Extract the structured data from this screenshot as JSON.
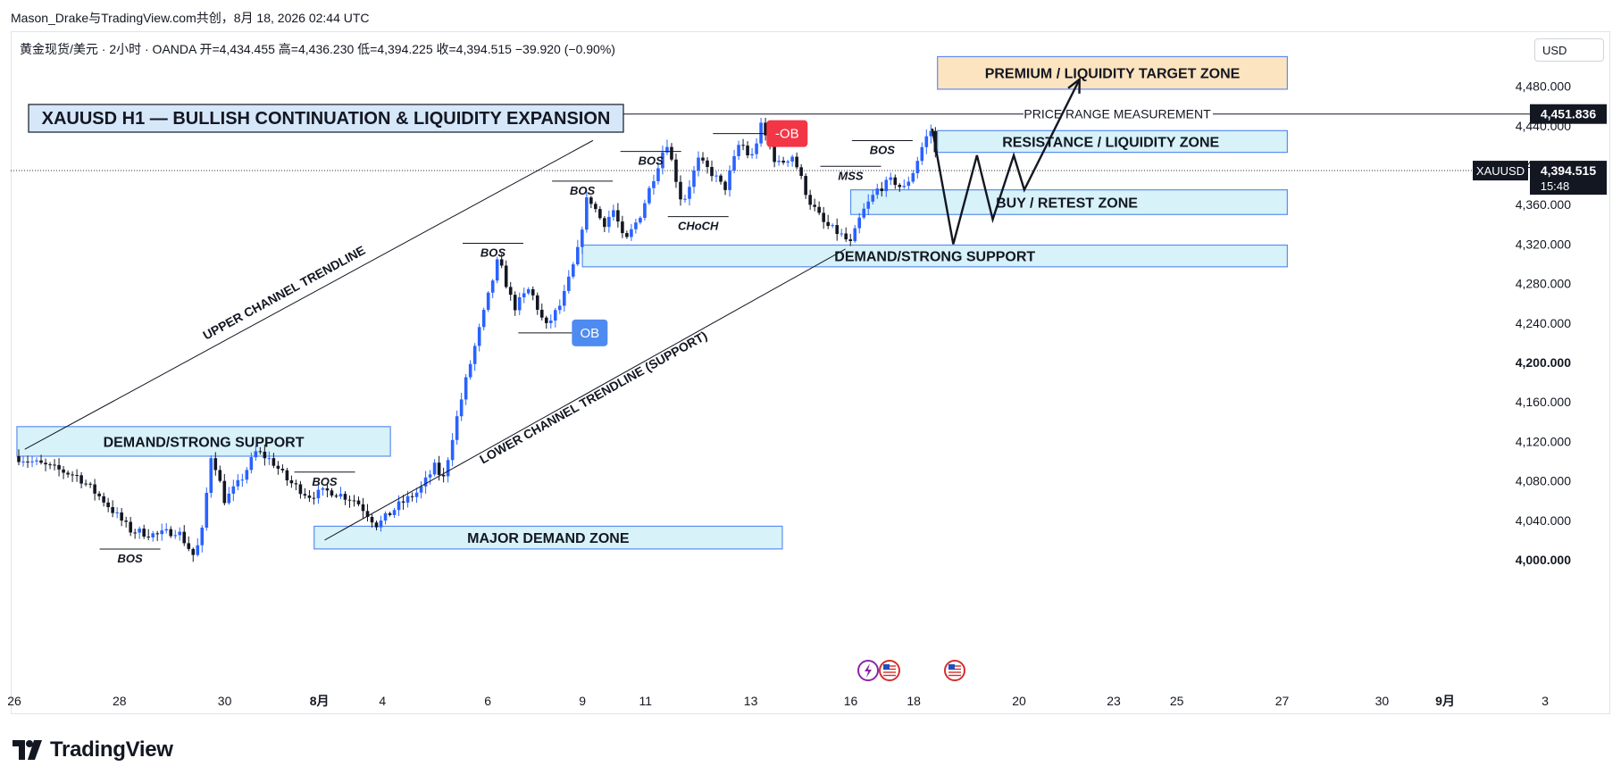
{
  "header": {
    "publish_line": "Mason_Drake与TradingView.com共创，8月 18, 2026 02:44 UTC",
    "symbol_line": "黄金现货/美元 · 2小时 · OANDA  开=4,434.455  高=4,436.230  低=4,394.225  收=4,394.515  −39.920 (−0.90%)",
    "currency": "USD"
  },
  "brand": {
    "name": "TradingView"
  },
  "colors": {
    "bull": "#2962ff",
    "bear": "#131722",
    "zone_fill": "#c9eef6",
    "zone_border": "#5b8def",
    "target_fill": "#fde4c0",
    "ob_bear": "#f23645",
    "ob_bull": "#4e8bf0"
  },
  "chart_data": {
    "type": "candlestick",
    "title": "XAUUSD H1 — BULLISH CONTINUATION & LIQUIDITY EXPANSION",
    "symbol": "XAUUSD",
    "last_price": "4,394.515",
    "countdown": "15:48",
    "range_high_label": "4,451.836",
    "ylim": [
      3990,
      4510
    ],
    "y_ticks": [
      {
        "value": 4480,
        "label": "4,480.000"
      },
      {
        "value": 4440,
        "label": "4,440.000"
      },
      {
        "value": 4400,
        "label": "4,400.000"
      },
      {
        "value": 4360,
        "label": "4,360.000"
      },
      {
        "value": 4320,
        "label": "4,320.000"
      },
      {
        "value": 4280,
        "label": "4,280.000"
      },
      {
        "value": 4240,
        "label": "4,240.000"
      },
      {
        "value": 4200,
        "label": "4,200.000",
        "bold": true
      },
      {
        "value": 4160,
        "label": "4,160.000"
      },
      {
        "value": 4120,
        "label": "4,120.000"
      },
      {
        "value": 4080,
        "label": "4,080.000"
      },
      {
        "value": 4040,
        "label": "4,040.000"
      },
      {
        "value": 4000,
        "label": "4,000.000",
        "bold": true
      }
    ],
    "x_ticks": [
      {
        "label": "26",
        "t": 0
      },
      {
        "label": "28",
        "t": 2
      },
      {
        "label": "30",
        "t": 4
      },
      {
        "label": "8月",
        "t": 5.8,
        "bold": true
      },
      {
        "label": "4",
        "t": 7
      },
      {
        "label": "6",
        "t": 9
      },
      {
        "label": "9",
        "t": 10.8
      },
      {
        "label": "11",
        "t": 12
      },
      {
        "label": "13",
        "t": 14
      },
      {
        "label": "16",
        "t": 15.9
      },
      {
        "label": "18",
        "t": 17.1
      },
      {
        "label": "20",
        "t": 19.1
      },
      {
        "label": "23",
        "t": 20.9
      },
      {
        "label": "25",
        "t": 22.1
      },
      {
        "label": "27",
        "t": 24.1
      },
      {
        "label": "30",
        "t": 26
      },
      {
        "label": "9月",
        "t": 27.2,
        "bold": true
      },
      {
        "label": "3",
        "t": 29.1
      }
    ],
    "price_path": [
      {
        "t": 0.0,
        "p": 4105
      },
      {
        "t": 0.6,
        "p": 4095
      },
      {
        "t": 1.2,
        "p": 4085
      },
      {
        "t": 1.7,
        "p": 4060
      },
      {
        "t": 2.2,
        "p": 4030
      },
      {
        "t": 2.7,
        "p": 4025
      },
      {
        "t": 3.1,
        "p": 4030
      },
      {
        "t": 3.4,
        "p": 4005
      },
      {
        "t": 3.55,
        "p": 4020
      },
      {
        "t": 3.75,
        "p": 4110
      },
      {
        "t": 4.0,
        "p": 4060
      },
      {
        "t": 4.3,
        "p": 4080
      },
      {
        "t": 4.6,
        "p": 4110
      },
      {
        "t": 4.9,
        "p": 4100
      },
      {
        "t": 5.2,
        "p": 4080
      },
      {
        "t": 5.6,
        "p": 4065
      },
      {
        "t": 6.0,
        "p": 4070
      },
      {
        "t": 6.5,
        "p": 4060
      },
      {
        "t": 6.9,
        "p": 4035
      },
      {
        "t": 7.3,
        "p": 4055
      },
      {
        "t": 7.7,
        "p": 4070
      },
      {
        "t": 8.0,
        "p": 4095
      },
      {
        "t": 8.15,
        "p": 4080
      },
      {
        "t": 8.35,
        "p": 4130
      },
      {
        "t": 8.6,
        "p": 4185
      },
      {
        "t": 8.9,
        "p": 4245
      },
      {
        "t": 9.2,
        "p": 4305
      },
      {
        "t": 9.5,
        "p": 4255
      },
      {
        "t": 9.8,
        "p": 4275
      },
      {
        "t": 10.1,
        "p": 4235
      },
      {
        "t": 10.4,
        "p": 4260
      },
      {
        "t": 10.7,
        "p": 4310
      },
      {
        "t": 10.9,
        "p": 4370
      },
      {
        "t": 11.2,
        "p": 4340
      },
      {
        "t": 11.4,
        "p": 4355
      },
      {
        "t": 11.6,
        "p": 4320
      },
      {
        "t": 11.9,
        "p": 4350
      },
      {
        "t": 12.2,
        "p": 4395
      },
      {
        "t": 12.4,
        "p": 4425
      },
      {
        "t": 12.7,
        "p": 4360
      },
      {
        "t": 13.0,
        "p": 4405
      },
      {
        "t": 13.3,
        "p": 4390
      },
      {
        "t": 13.5,
        "p": 4375
      },
      {
        "t": 13.8,
        "p": 4425
      },
      {
        "t": 14.0,
        "p": 4405
      },
      {
        "t": 14.2,
        "p": 4440
      },
      {
        "t": 14.5,
        "p": 4400
      },
      {
        "t": 14.8,
        "p": 4410
      },
      {
        "t": 15.1,
        "p": 4365
      },
      {
        "t": 15.4,
        "p": 4340
      },
      {
        "t": 15.7,
        "p": 4330
      },
      {
        "t": 15.9,
        "p": 4320
      },
      {
        "t": 16.1,
        "p": 4350
      },
      {
        "t": 16.4,
        "p": 4375
      },
      {
        "t": 16.7,
        "p": 4385
      },
      {
        "t": 16.9,
        "p": 4375
      },
      {
        "t": 17.1,
        "p": 4395
      },
      {
        "t": 17.3,
        "p": 4425
      },
      {
        "t": 17.45,
        "p": 4437
      },
      {
        "t": 17.55,
        "p": 4395
      }
    ],
    "zones": [
      {
        "label": "PREMIUM / LIQUIDITY TARGET ZONE",
        "from_t": 17.55,
        "to_t": 24.2,
        "low": 4477,
        "high": 4510,
        "style": "target"
      },
      {
        "label": "RESISTANCE / LIQUIDITY ZONE",
        "from_t": 17.55,
        "to_t": 24.2,
        "low": 4413,
        "high": 4435,
        "style": "zone"
      },
      {
        "label": "BUY / RETEST ZONE",
        "from_t": 15.9,
        "to_t": 24.2,
        "low": 4350,
        "high": 4375,
        "style": "zone"
      },
      {
        "label": "DEMAND/STRONG SUPPORT",
        "from_t": 10.8,
        "to_t": 24.2,
        "low": 4297,
        "high": 4319,
        "style": "zone"
      },
      {
        "label": "DEMAND/STRONG SUPPORT",
        "from_t": 0.05,
        "to_t": 7.15,
        "low": 4105,
        "high": 4135,
        "style": "zone"
      },
      {
        "label": "MAJOR DEMAND ZONE",
        "from_t": 5.7,
        "to_t": 14.6,
        "low": 4011,
        "high": 4034,
        "style": "zone"
      }
    ],
    "trendlines": [
      {
        "label": "UPPER CHANNEL TRENDLINE",
        "from": {
          "t": 0.2,
          "p": 4112
        },
        "to": {
          "t": 11.0,
          "p": 4425
        }
      },
      {
        "label": "LOWER CHANNEL TRENDLINE (SUPPORT)",
        "from": {
          "t": 5.9,
          "p": 4020
        },
        "to": {
          "t": 15.8,
          "p": 4315
        }
      }
    ],
    "annotations": [
      {
        "text": "BOS",
        "t": 2.2,
        "p": 4000
      },
      {
        "text": "BOS",
        "t": 5.9,
        "p": 4078
      },
      {
        "text": "BOS",
        "t": 9.1,
        "p": 4310
      },
      {
        "text": "BOS",
        "t": 10.8,
        "p": 4373
      },
      {
        "text": "BOS",
        "t": 12.1,
        "p": 4403
      },
      {
        "text": "CHoCH",
        "t": 13.0,
        "p": 4337
      },
      {
        "text": "MSS",
        "t": 15.9,
        "p": 4388
      },
      {
        "text": "BOS",
        "t": 16.5,
        "p": 4414
      }
    ],
    "order_blocks": [
      {
        "text": "-OB",
        "t": 14.3,
        "p": 4432,
        "style": "bear"
      },
      {
        "text": "OB",
        "t": 10.6,
        "p": 4230,
        "style": "bull"
      }
    ],
    "range_measurement": {
      "label": "PRICE RANGE MEASUREMENT",
      "value": 4451.836
    },
    "projection": [
      {
        "t": 17.45,
        "p": 4437
      },
      {
        "t": 17.85,
        "p": 4320
      },
      {
        "t": 18.3,
        "p": 4410
      },
      {
        "t": 18.6,
        "p": 4345
      },
      {
        "t": 19.0,
        "p": 4410
      },
      {
        "t": 19.2,
        "p": 4375
      },
      {
        "t": 20.25,
        "p": 4487
      }
    ]
  }
}
